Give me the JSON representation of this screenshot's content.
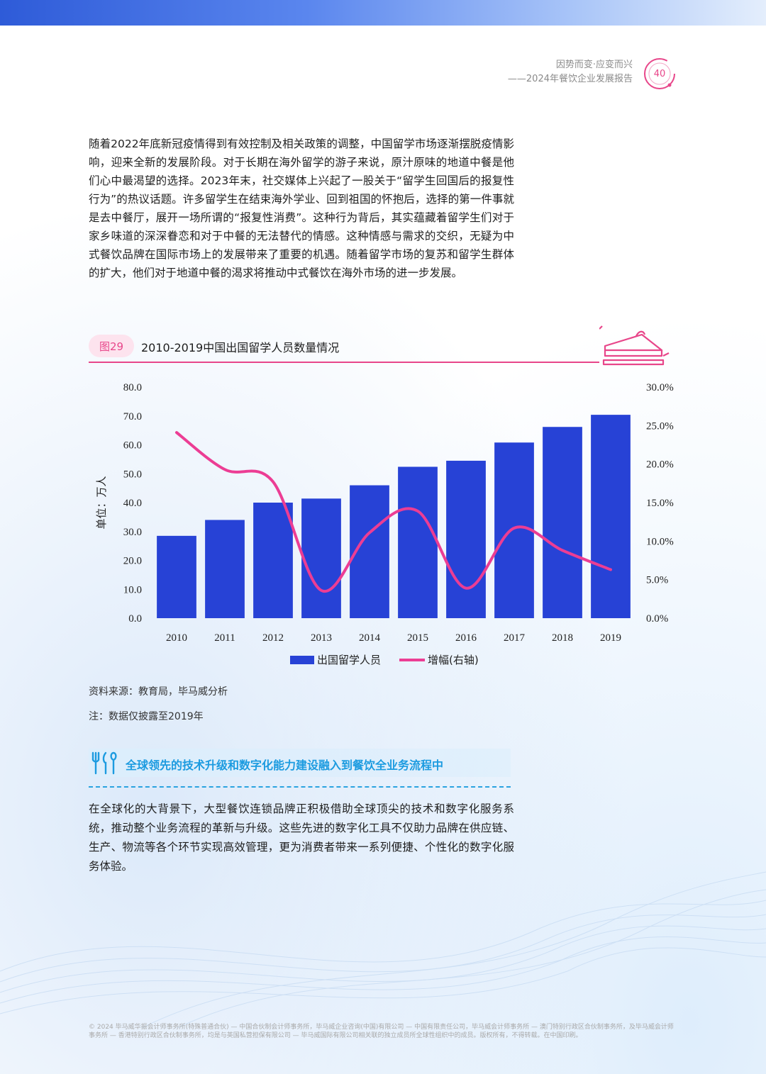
{
  "header": {
    "line1": "因势而变·应变而兴",
    "line2": "——2024年餐饮企业发展报告",
    "page_number": "40"
  },
  "intro_paragraph": "随着2022年底新冠疫情得到有效控制及相关政策的调整，中国留学市场逐渐摆脱疫情影响，迎来全新的发展阶段。对于长期在海外留学的游子来说，原汁原味的地道中餐是他们心中最渴望的选择。2023年末，社交媒体上兴起了一股关于“留学生回国后的报复性行为”的热议话题。许多留学生在结束海外学业、回到祖国的怀抱后，选择的第一件事就是去中餐厅，展开一场所谓的“报复性消费”。这种行为背后，其实蕴藏着留学生们对于家乡味道的深深眷恋和对于中餐的无法替代的情感。这种情感与需求的交织，无疑为中式餐饮品牌在国际市场上的发展带来了重要的机遇。随着留学市场的复苏和留学生群体的扩大，他们对于地道中餐的渴求将推动中式餐饮在海外市场的进一步发展。",
  "figure": {
    "tag": "图29",
    "title": "2010-2019中国出国留学人员数量情况"
  },
  "chart_data": {
    "type": "bar",
    "categories": [
      "2010",
      "2011",
      "2012",
      "2013",
      "2014",
      "2015",
      "2016",
      "2017",
      "2018",
      "2019"
    ],
    "series": [
      {
        "name": "出国留学人员",
        "type": "bar",
        "axis": "left",
        "color": "#2742d6",
        "values": [
          28.5,
          34.0,
          40.0,
          41.4,
          46.0,
          52.4,
          54.5,
          60.8,
          66.2,
          70.4
        ]
      },
      {
        "name": "增幅(右轴)",
        "type": "line",
        "axis": "right",
        "color": "#ec3d94",
        "values": [
          24.1,
          19.3,
          17.7,
          3.6,
          11.1,
          13.9,
          3.9,
          11.7,
          8.8,
          6.3
        ]
      }
    ],
    "ylabel": "单位：万人",
    "ylim": [
      0,
      80
    ],
    "y_ticks": [
      "0.0",
      "10.0",
      "20.0",
      "30.0",
      "40.0",
      "50.0",
      "60.0",
      "70.0",
      "80.0"
    ],
    "y2lim": [
      0,
      30
    ],
    "y2_ticks": [
      "0.0%",
      "5.0%",
      "10.0%",
      "15.0%",
      "20.0%",
      "25.0%",
      "30.0%"
    ],
    "legend_position": "bottom",
    "grid": false
  },
  "source_note": "资料来源：教育局，毕马威分析",
  "data_note": "注：数据仅披露至2019年",
  "section": {
    "title": "全球领先的技术升级和数字化能力建设融入到餐饮全业务流程中"
  },
  "body_paragraph": "在全球化的大背景下，大型餐饮连锁品牌正积极借助全球顶尖的技术和数字化服务系统，推动整个业务流程的革新与升级。这些先进的数字化工具不仅助力品牌在供应链、生产、物流等各个环节实现高效管理，更为消费者带来一系列便捷、个性化的数字化服务体验。",
  "footer": "© 2024 毕马威华振会计师事务所(特殊普通合伙) — 中国合伙制会计师事务所，毕马威企业咨询(中国)有限公司 — 中国有限责任公司，毕马威会计师事务所 — 澳门特别行政区合伙制事务所，及毕马威会计师事务所 — 香港特别行政区合伙制事务所，均是与英国私营担保有限公司 — 毕马威国际有限公司相关联的独立成员所全球性组织中的成员。版权所有，不得转载。在中国印刷。"
}
